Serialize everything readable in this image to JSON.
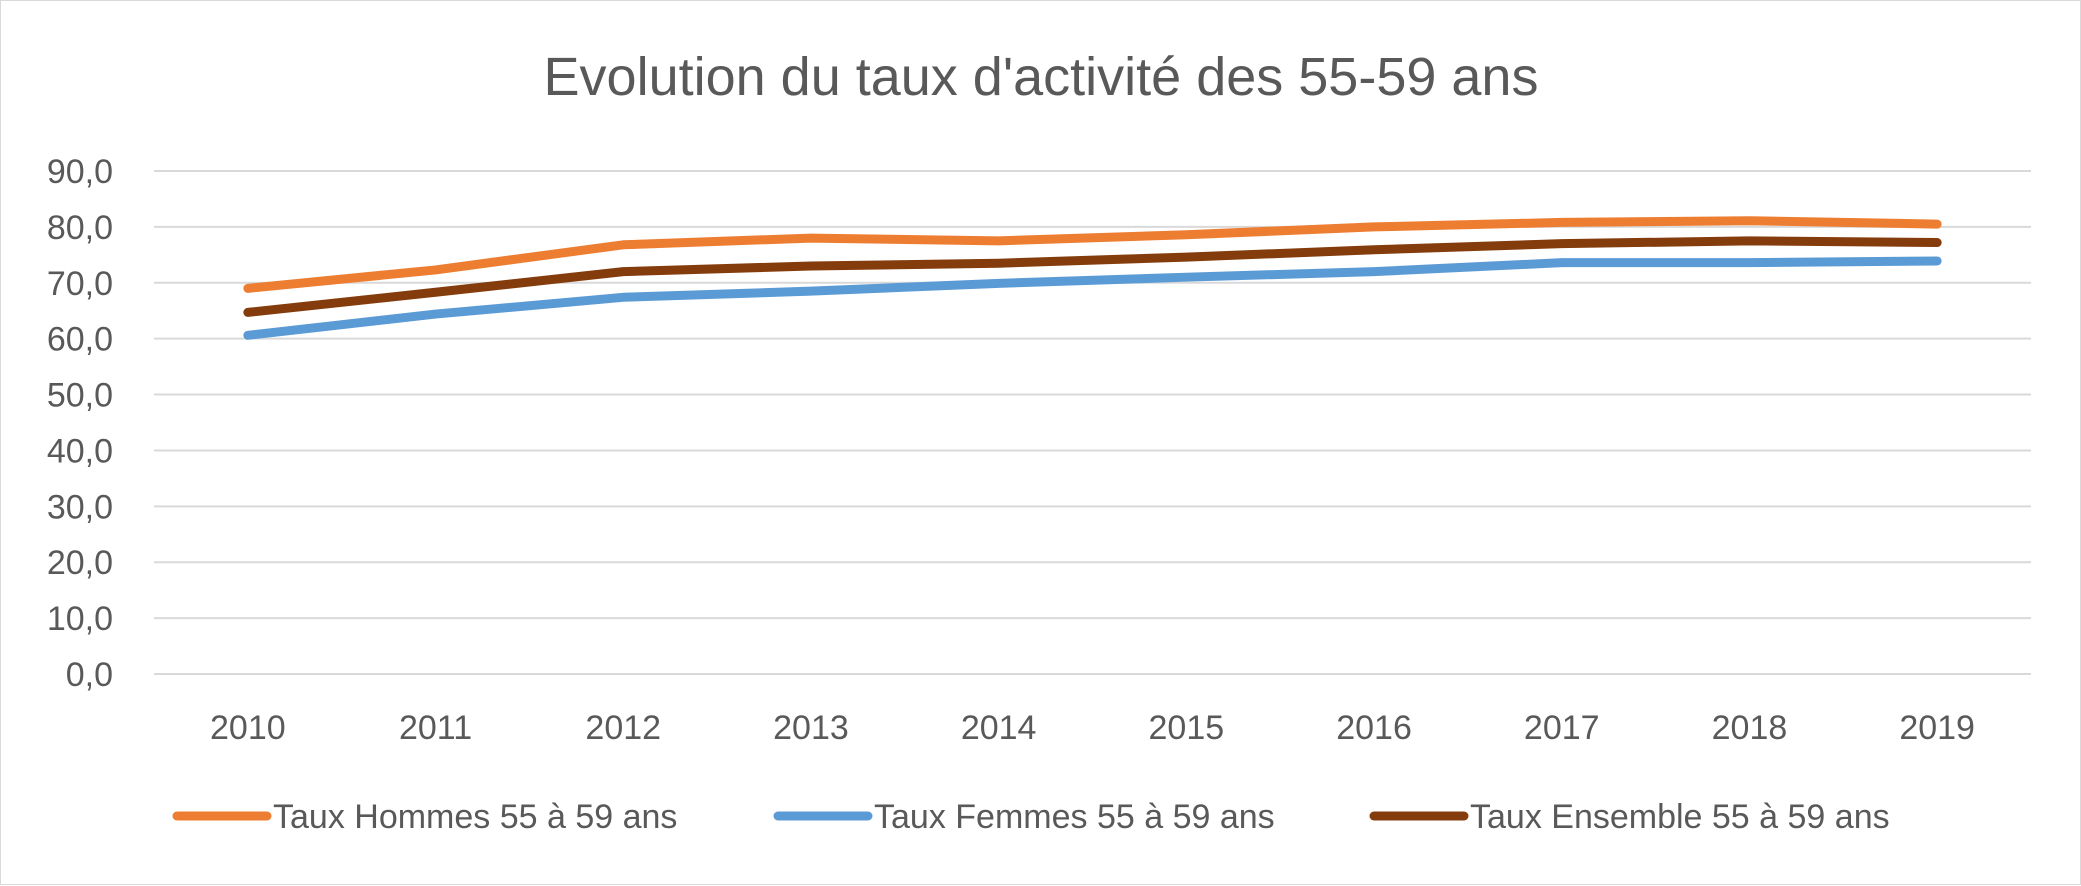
{
  "chart_data": {
    "type": "line",
    "title": "Evolution du taux d'activité des 55-59 ans",
    "xlabel": "",
    "ylabel": "",
    "categories": [
      "2010",
      "2011",
      "2012",
      "2013",
      "2014",
      "2015",
      "2016",
      "2017",
      "2018",
      "2019"
    ],
    "y_ticks": [
      "0,0",
      "10,0",
      "20,0",
      "30,0",
      "40,0",
      "50,0",
      "60,0",
      "70,0",
      "80,0",
      "90,0"
    ],
    "ylim": [
      0,
      90
    ],
    "grid": true,
    "legend_position": "bottom",
    "series": [
      {
        "name": "Taux Hommes 55 à 59 ans",
        "color": "#ED7D31",
        "values": [
          69.0,
          72.3,
          76.8,
          78.0,
          77.5,
          78.6,
          80.0,
          80.8,
          81.1,
          80.5
        ]
      },
      {
        "name": "Taux Femmes 55 à 59 ans",
        "color": "#5B9BD5",
        "values": [
          60.6,
          64.4,
          67.4,
          68.5,
          69.9,
          71.0,
          72.0,
          73.6,
          73.6,
          73.9
        ]
      },
      {
        "name": "Taux Ensemble 55 à 59 ans",
        "color": "#843C0C",
        "values": [
          64.7,
          68.3,
          72.0,
          73.0,
          73.5,
          74.6,
          75.9,
          77.0,
          77.5,
          77.2
        ]
      }
    ]
  }
}
